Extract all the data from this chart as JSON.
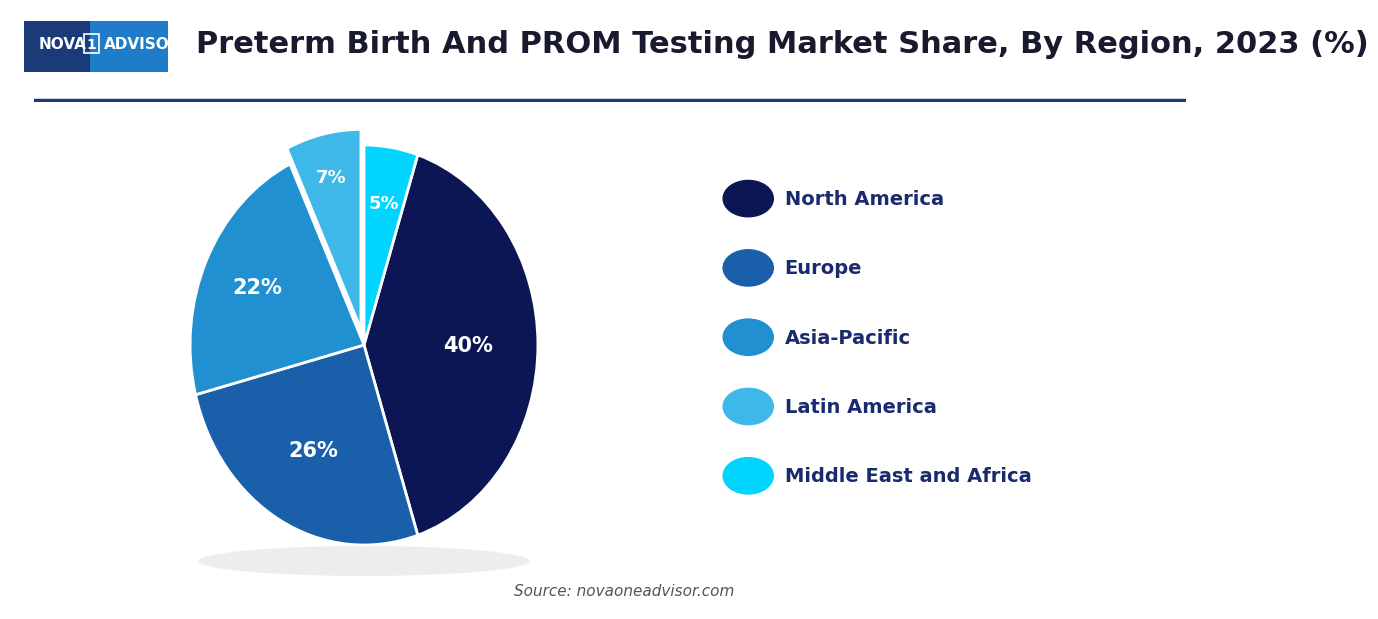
{
  "title": "Preterm Birth And PROM Testing Market Share, By Region, 2023 (%)",
  "labels": [
    "North America",
    "Europe",
    "Asia-Pacific",
    "Latin America",
    "Middle East and Africa"
  ],
  "values": [
    40,
    26,
    22,
    7,
    5
  ],
  "colors": [
    "#0d1654",
    "#1a5faa",
    "#2090d0",
    "#3db8e8",
    "#00d4ff"
  ],
  "explode": [
    0,
    0,
    0,
    0.08,
    0
  ],
  "pct_labels": [
    "40%",
    "26%",
    "22%",
    "7%",
    "5%"
  ],
  "source_text": "Source: novaoneadvisor.com",
  "background_color": "#ffffff",
  "legend_label_color": "#1a2a6e",
  "legend_fontsize": 14,
  "title_fontsize": 22,
  "startangle": 72
}
